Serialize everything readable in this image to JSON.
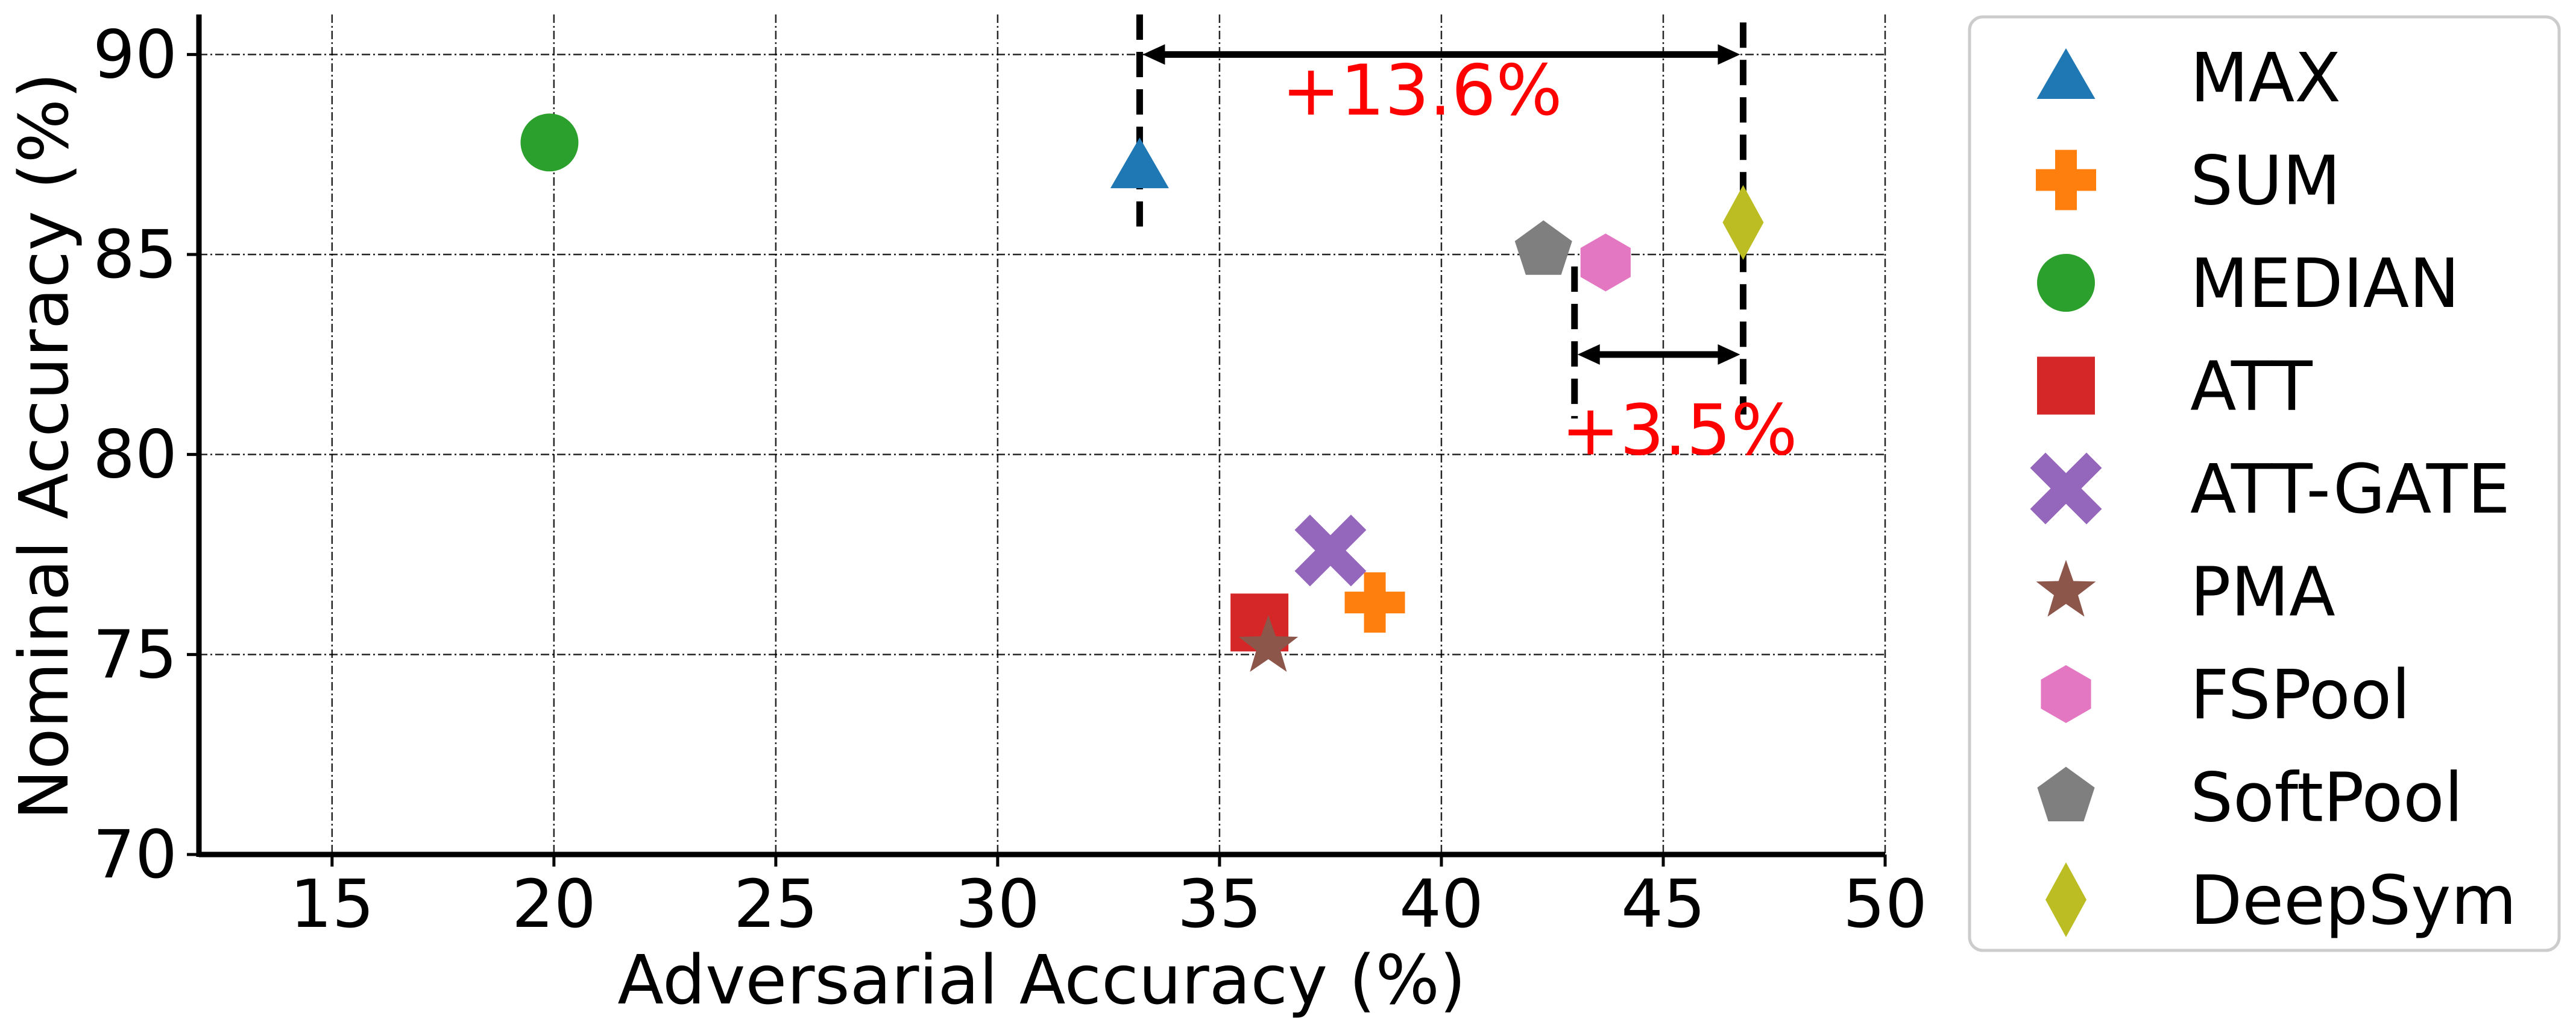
{
  "chart_data": {
    "type": "scatter",
    "xlabel": "Adversarial Accuracy (%)",
    "ylabel": "Nominal Accuracy (%)",
    "xlim": [
      12,
      50
    ],
    "ylim": [
      70,
      91
    ],
    "xticks": [
      15,
      20,
      25,
      30,
      35,
      40,
      45,
      50
    ],
    "yticks": [
      70,
      75,
      80,
      85,
      90
    ],
    "grid": true,
    "legend_position": "outside-right",
    "series": [
      {
        "name": "MAX",
        "x": 33.2,
        "y": 87.2,
        "marker": "triangle",
        "color": "#1f77b4"
      },
      {
        "name": "SUM",
        "x": 38.5,
        "y": 76.3,
        "marker": "plus",
        "color": "#ff7f0e"
      },
      {
        "name": "MEDIAN",
        "x": 19.9,
        "y": 87.8,
        "marker": "circle",
        "color": "#2ca02c"
      },
      {
        "name": "ATT",
        "x": 35.9,
        "y": 75.8,
        "marker": "square",
        "color": "#d62728"
      },
      {
        "name": "ATT-GATE",
        "x": 37.5,
        "y": 77.6,
        "marker": "x",
        "color": "#9467bd"
      },
      {
        "name": "PMA",
        "x": 36.1,
        "y": 75.2,
        "marker": "star",
        "color": "#8c564b"
      },
      {
        "name": "FSPool",
        "x": 43.7,
        "y": 84.8,
        "marker": "hexagon",
        "color": "#e377c2"
      },
      {
        "name": "SoftPool",
        "x": 42.3,
        "y": 85.1,
        "marker": "pentagon",
        "color": "#7f7f7f"
      },
      {
        "name": "DeepSym",
        "x": 46.8,
        "y": 85.8,
        "marker": "diamond",
        "color": "#bcbd22"
      }
    ],
    "annotations": [
      {
        "text": "+13.6%",
        "x_from": 33.2,
        "x_to": 46.8,
        "y": 90.0,
        "label_x": 36.4,
        "label_y": 88.5
      },
      {
        "text": "+3.5%",
        "x_from": 43.0,
        "x_to": 46.8,
        "y": 82.5,
        "label_x": 42.7,
        "label_y": 80.0
      }
    ],
    "reference_lines": [
      {
        "x": 33.2,
        "y_from": 85.7,
        "y_to": 91.0
      },
      {
        "x": 46.8,
        "y_from": 81.0,
        "y_to": 90.8
      },
      {
        "x": 43.0,
        "y_from": 80.9,
        "y_to": 84.7
      }
    ]
  }
}
